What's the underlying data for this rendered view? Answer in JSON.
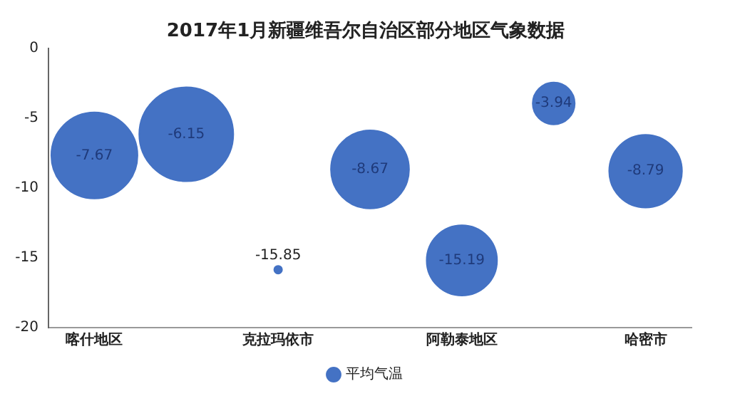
{
  "chart_data": {
    "type": "bubble",
    "title": "2017年1月新疆维吾尔自治区部分地区气象数据",
    "categories": [
      "喀什地区",
      null,
      "克拉玛依市",
      null,
      "阿勒泰地区",
      null,
      "哈密市"
    ],
    "series": [
      {
        "name": "平均气温",
        "color": "#4472c4",
        "values": [
          -7.67,
          -6.15,
          -15.85,
          -8.67,
          -15.19,
          -3.94,
          -8.79
        ],
        "sizes": [
          0.84,
          1,
          0.007,
          0.69,
          0.56,
          0.2,
          0.6
        ]
      }
    ],
    "ylim": [
      -20,
      0
    ],
    "yticks": [
      0,
      -5,
      -10,
      -15,
      -20
    ],
    "grid": false,
    "legend": "bottom",
    "data_labels": true
  }
}
